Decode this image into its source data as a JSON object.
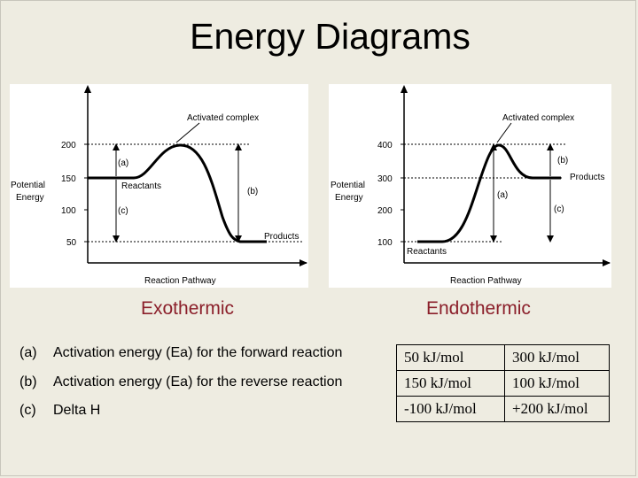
{
  "title": "Energy Diagrams",
  "exothermic": {
    "caption": "Exothermic",
    "y_axis_label_line1": "Potential",
    "y_axis_label_line2": "Energy",
    "x_axis_label": "Reaction Pathway",
    "ticks": [
      "200",
      "150",
      "100",
      "50"
    ],
    "annotations": {
      "complex": "Activated complex",
      "a": "(a)",
      "b": "(b)",
      "c": "(c)",
      "reactants": "Reactants",
      "products": "Products"
    }
  },
  "endothermic": {
    "caption": "Endothermic",
    "y_axis_label_line1": "Potential",
    "y_axis_label_line2": "Energy",
    "x_axis_label": "Reaction Pathway",
    "ticks": [
      "400",
      "300",
      "200",
      "100"
    ],
    "annotations": {
      "complex": "Activated complex",
      "a": "(a)",
      "b": "(b)",
      "c": "(c)",
      "reactants": "Reactants",
      "products": "Products"
    }
  },
  "rows": [
    {
      "tag": "(a)",
      "label": "Activation energy (Ea) for the forward reaction",
      "exo": "50 kJ/mol",
      "endo": "300 kJ/mol"
    },
    {
      "tag": "(b)",
      "label": "Activation energy (Ea) for the reverse reaction",
      "exo": "150 kJ/mol",
      "endo": "100 kJ/mol"
    },
    {
      "tag": "(c)",
      "label": "Delta H",
      "exo": "-100 kJ/mol",
      "endo": "+200 kJ/mol"
    }
  ]
}
